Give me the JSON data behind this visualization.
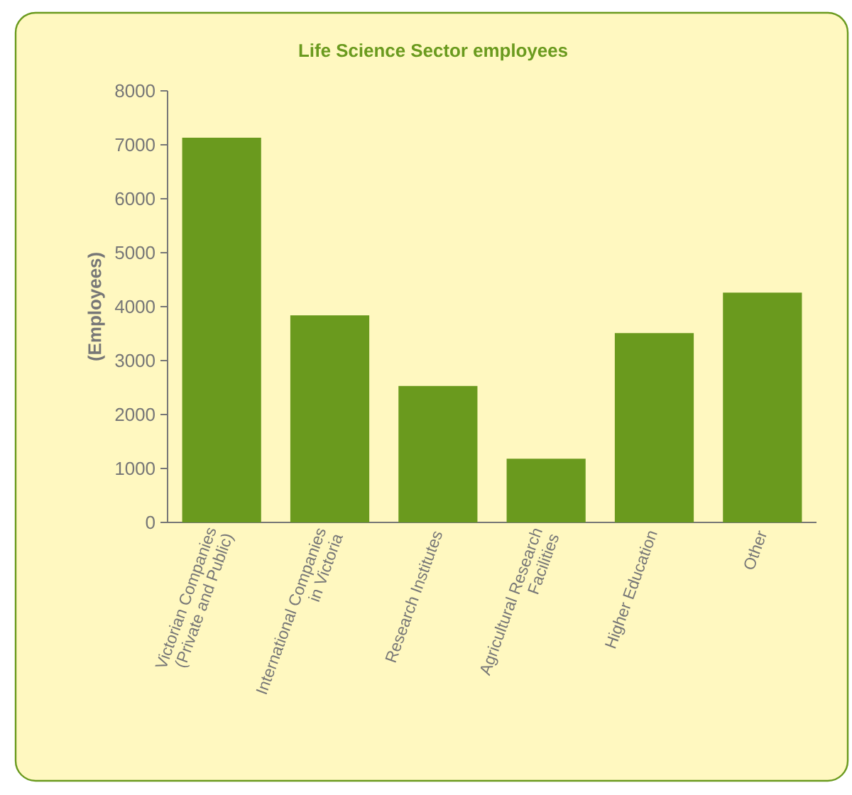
{
  "chart_data": {
    "type": "bar",
    "title": "Life Science Sector employees",
    "ylabel": "(Employees)",
    "categories": [
      "Victorian Companies (Private and Public)",
      "International Companies in Victoria",
      "Research Institutes",
      "Agricultural Research Facilities",
      "Higher Education",
      "Other"
    ],
    "values": [
      7130,
      3840,
      2530,
      1180,
      3510,
      4260
    ],
    "color": "#6a9a1e",
    "ylim": [
      0,
      8000
    ],
    "yticks": [
      0,
      1000,
      2000,
      3000,
      4000,
      5000,
      6000,
      7000,
      8000
    ],
    "grid": false
  }
}
